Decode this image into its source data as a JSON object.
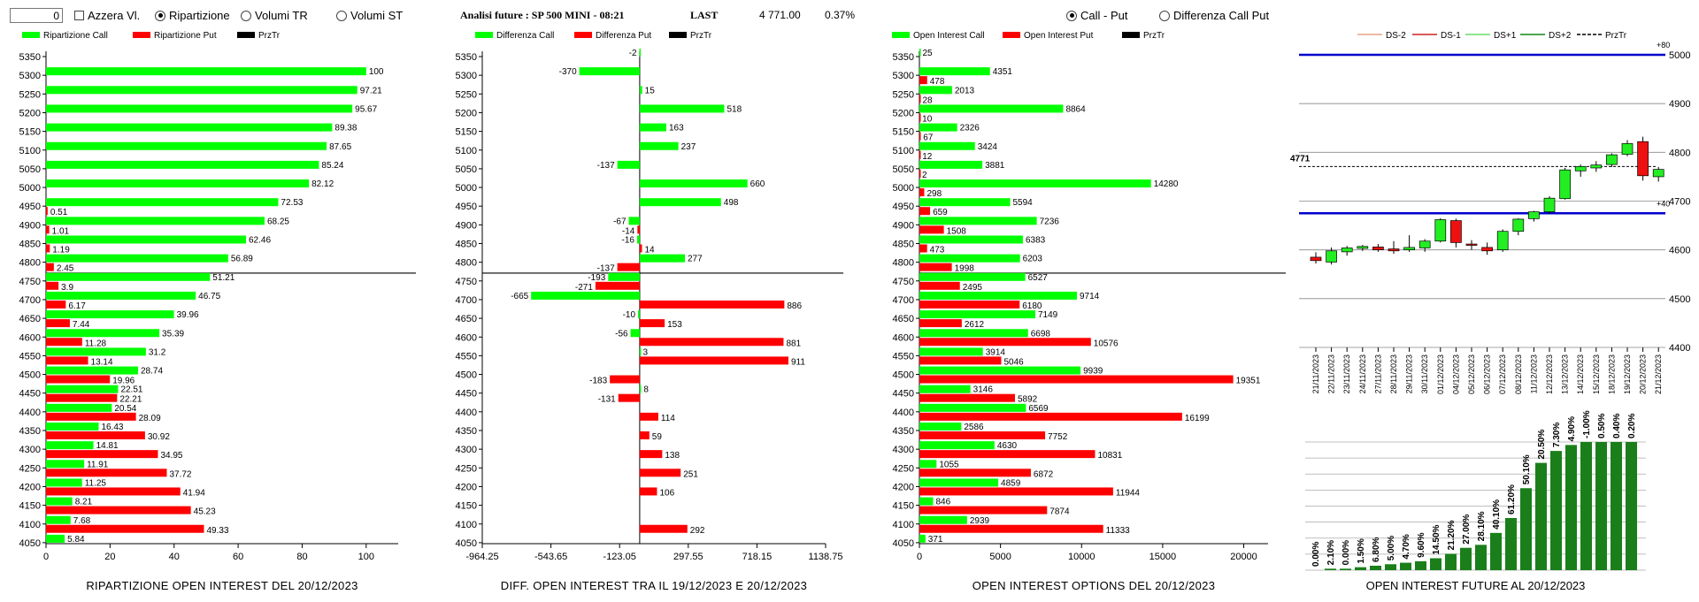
{
  "controls": {
    "spin_value": "0",
    "azzera_label": "Azzera Vl.",
    "radio_ripartizione": "Ripartizione",
    "radio_volumi_tr": "Volumi TR",
    "radio_volumi_st": "Volumi ST",
    "analisi_label": "Analisi future : SP 500 MINI - 08:21",
    "last_label": "LAST",
    "last_value": "4 771.00",
    "last_pct": "0.37%",
    "radio_call_put": "Call - Put",
    "radio_diff_call_put": "Differenza Call Put"
  },
  "colors": {
    "call": "#00ff00",
    "put": "#ff0000",
    "prztr": "#000000",
    "fut_bar": "#1a7f1a",
    "fut_line": "#0000cc"
  },
  "chart_data": [
    {
      "id": "ripartizione",
      "type": "bar",
      "orientation": "horizontal",
      "title": "RIPARTIZIONE OPEN INTEREST DEL 20/12/2023",
      "legend": [
        "Ripartizione Call",
        "Ripartizione Put",
        "PrzTr"
      ],
      "strikes": [
        5350,
        5300,
        5250,
        5200,
        5150,
        5100,
        5050,
        5000,
        4950,
        4900,
        4850,
        4800,
        4750,
        4700,
        4650,
        4600,
        4550,
        4500,
        4450,
        4400,
        4350,
        4300,
        4250,
        4200,
        4150,
        4100,
        4050
      ],
      "call": [
        null,
        100,
        97.21,
        95.67,
        89.38,
        87.65,
        85.24,
        82.12,
        72.53,
        68.25,
        62.46,
        56.89,
        51.21,
        46.75,
        39.96,
        35.39,
        31.2,
        28.74,
        22.51,
        20.54,
        16.43,
        14.81,
        11.91,
        11.25,
        8.21,
        7.68,
        5.84
      ],
      "put": [
        null,
        null,
        null,
        null,
        null,
        null,
        null,
        null,
        0.51,
        1.01,
        1.19,
        2.45,
        3.9,
        6.17,
        7.44,
        11.28,
        13.14,
        19.96,
        22.21,
        28.09,
        30.92,
        34.95,
        37.72,
        41.94,
        45.23,
        49.33,
        null
      ],
      "xlim": [
        0,
        110
      ],
      "xticks": [
        "0",
        "20",
        "40",
        "60",
        "80",
        "100"
      ],
      "prztr_level": 4771
    },
    {
      "id": "differenza",
      "type": "bar",
      "orientation": "horizontal",
      "title": "DIFF. OPEN INTEREST TRA IL 19/12/2023 E 20/12/2023",
      "legend": [
        "Differenza Call",
        "Differenza Put",
        "PrzTr"
      ],
      "strikes": [
        5350,
        5300,
        5250,
        5200,
        5150,
        5100,
        5050,
        5000,
        4950,
        4900,
        4850,
        4800,
        4750,
        4700,
        4650,
        4600,
        4550,
        4500,
        4450,
        4400,
        4350,
        4300,
        4250,
        4200,
        4150,
        4100,
        4050
      ],
      "call": [
        -2,
        -370,
        15,
        518,
        163,
        237,
        -137,
        660,
        498,
        -67,
        -16,
        277,
        -193,
        -665,
        -10,
        -56,
        3,
        null,
        8,
        null,
        null,
        null,
        null,
        null,
        null,
        null,
        null
      ],
      "put": [
        null,
        null,
        null,
        null,
        null,
        null,
        null,
        null,
        null,
        -14,
        14,
        -137,
        -271,
        886,
        153,
        881,
        911,
        -183,
        -131,
        114,
        59,
        138,
        251,
        106,
        null,
        292,
        null
      ],
      "xlim": [
        -964.25,
        1138.75
      ],
      "xticks": [
        "-964.25",
        "-543.65",
        "-123.05",
        "297.55",
        "718.15",
        "1138.75"
      ],
      "prztr_level": 4771
    },
    {
      "id": "oi_options",
      "type": "bar",
      "orientation": "horizontal",
      "title": "OPEN INTEREST OPTIONS DEL 20/12/2023",
      "legend": [
        "Open Interest Call",
        "Open Interest Put",
        "PrzTr"
      ],
      "strikes": [
        5350,
        5300,
        5250,
        5200,
        5150,
        5100,
        5050,
        5000,
        4950,
        4900,
        4850,
        4800,
        4750,
        4700,
        4650,
        4600,
        4550,
        4500,
        4450,
        4400,
        4350,
        4300,
        4250,
        4200,
        4150,
        4100,
        4050
      ],
      "call": [
        25,
        4351,
        2013,
        8864,
        2326,
        3424,
        3881,
        14280,
        5594,
        7236,
        6383,
        6203,
        6527,
        9714,
        7149,
        6698,
        3914,
        9939,
        3146,
        6569,
        2586,
        4630,
        1055,
        4859,
        846,
        2939,
        371
      ],
      "put": [
        null,
        478,
        28,
        10,
        67,
        12,
        2,
        298,
        659,
        1508,
        473,
        1998,
        2495,
        6180,
        2612,
        10576,
        5046,
        19351,
        5892,
        16199,
        7752,
        10831,
        6872,
        11944,
        7874,
        11333,
        null
      ],
      "xlim": [
        0,
        21500
      ],
      "xticks": [
        "0",
        "5000",
        "10000",
        "15000",
        "20000"
      ],
      "prztr_level": 4771
    },
    {
      "id": "future_candles",
      "type": "candlestick",
      "legend": [
        "DS-2",
        "DS-1",
        "DS+1",
        "DS+2",
        "PrzTr"
      ],
      "dates": [
        "21/11/2023",
        "22/11/2023",
        "23/11/2023",
        "24/11/2023",
        "27/11/2023",
        "28/11/2023",
        "29/11/2023",
        "30/11/2023",
        "01/12/2023",
        "04/12/2023",
        "05/12/2023",
        "06/12/2023",
        "07/12/2023",
        "08/12/2023",
        "11/12/2023",
        "12/12/2023",
        "13/12/2023",
        "14/12/2023",
        "15/12/2023",
        "18/12/2023",
        "19/12/2023",
        "20/12/2023",
        "21/12/2023"
      ],
      "ohlc": [
        [
          4585,
          4595,
          4572,
          4578
        ],
        [
          4575,
          4605,
          4570,
          4598
        ],
        [
          4596,
          4608,
          4588,
          4604
        ],
        [
          4603,
          4610,
          4598,
          4607
        ],
        [
          4606,
          4612,
          4596,
          4600
        ],
        [
          4602,
          4618,
          4592,
          4598
        ],
        [
          4600,
          4630,
          4596,
          4605
        ],
        [
          4604,
          4622,
          4596,
          4618
        ],
        [
          4618,
          4665,
          4615,
          4662
        ],
        [
          4660,
          4664,
          4605,
          4615
        ],
        [
          4612,
          4620,
          4600,
          4610
        ],
        [
          4605,
          4615,
          4590,
          4598
        ],
        [
          4600,
          4642,
          4596,
          4638
        ],
        [
          4638,
          4665,
          4630,
          4663
        ],
        [
          4664,
          4680,
          4658,
          4678
        ],
        [
          4678,
          4710,
          4674,
          4706
        ],
        [
          4705,
          4768,
          4703,
          4764
        ],
        [
          4762,
          4775,
          4750,
          4771
        ],
        [
          4768,
          4782,
          4760,
          4774
        ],
        [
          4775,
          4798,
          4770,
          4795
        ],
        [
          4796,
          4825,
          4792,
          4818
        ],
        [
          4822,
          4832,
          4742,
          4752
        ],
        [
          4750,
          4770,
          4740,
          4765
        ]
      ],
      "ylim": [
        4400,
        5000
      ],
      "yticks": [
        "4400",
        "4500",
        "4600",
        "4700",
        "4800",
        "4900",
        "5000"
      ],
      "ds_upper": 5000,
      "ds_lower": 4675,
      "ds_upper_label": "+80",
      "ds_lower_label": "+40",
      "prztr_level": 4771,
      "prztr_label": "4771"
    },
    {
      "id": "oi_future",
      "type": "bar",
      "title": "OPEN INTEREST FUTURE AL 20/12/2023",
      "values": [
        0.0,
        2.1,
        0.0,
        1.5,
        6.8,
        5.0,
        4.7,
        9.6,
        14.5,
        21.2,
        27.0,
        28.1,
        40.1,
        61.2,
        50.1,
        20.5,
        7.3,
        4.9,
        -1.0,
        0.5,
        0.4,
        0.2
      ],
      "labels": [
        "0.00%",
        "2.10%",
        "0.00%",
        "1.50%",
        "6.80%",
        "5.00%",
        "4.70%",
        "9.60%",
        "14.50%",
        "21.20%",
        "27.00%",
        "28.10%",
        "40.10%",
        "61.20%",
        "50.10%",
        "20.50%",
        "7.30%",
        "4.90%",
        "-1.00%",
        "0.50%",
        "0.40%",
        "0.20%"
      ],
      "level": [
        0,
        1,
        1,
        2,
        3,
        4,
        5,
        6,
        8,
        11,
        15,
        17,
        25,
        35,
        55,
        72,
        80,
        84,
        86,
        86,
        86,
        86
      ]
    }
  ]
}
